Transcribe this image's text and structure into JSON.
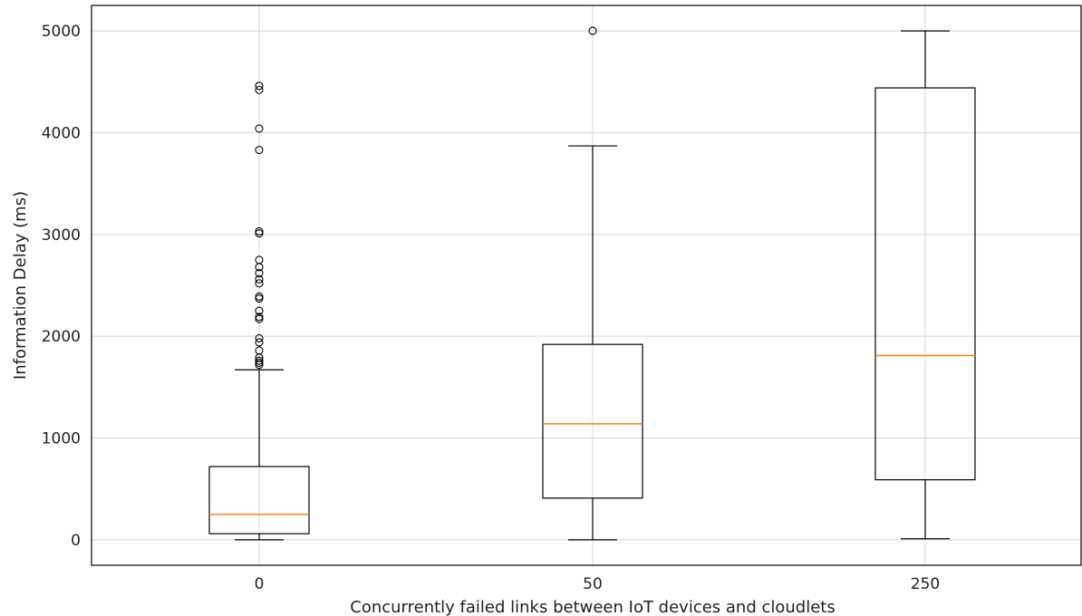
{
  "chart_data": {
    "type": "box",
    "title": "",
    "xlabel": "Concurrently failed links between IoT devices and cloudlets",
    "ylabel": "Information Delay (ms)",
    "ylim": [
      -250,
      5250
    ],
    "yticks": [
      0,
      1000,
      2000,
      3000,
      4000,
      5000
    ],
    "grid": true,
    "categories": [
      "0",
      "50",
      "250"
    ],
    "boxes": [
      {
        "category": "0",
        "whislo": 0,
        "q1": 60,
        "med": 250,
        "q3": 720,
        "whishi": 1670,
        "fliers": [
          1720,
          1740,
          1760,
          1790,
          1860,
          1940,
          1980,
          2170,
          2190,
          2250,
          2370,
          2390,
          2520,
          2560,
          2620,
          2680,
          2750,
          3010,
          3030,
          3830,
          4040,
          4420,
          4460
        ]
      },
      {
        "category": "50",
        "whislo": 0,
        "q1": 410,
        "med": 1140,
        "q3": 1920,
        "whishi": 3870,
        "fliers": [
          5000
        ]
      },
      {
        "category": "250",
        "whislo": 10,
        "q1": 590,
        "med": 1810,
        "q3": 4440,
        "whishi": 5000,
        "fliers": []
      }
    ]
  }
}
